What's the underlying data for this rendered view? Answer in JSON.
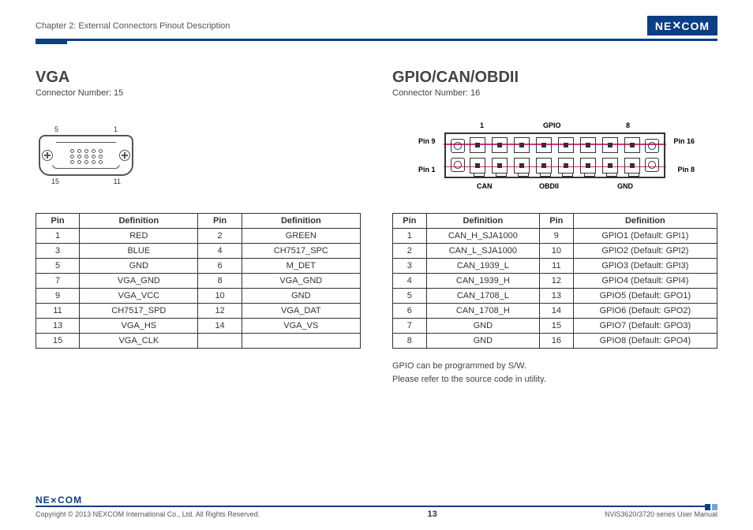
{
  "header": {
    "chapter": "Chapter 2: External Connectors Pinout Description",
    "logo_text": "NE COM",
    "rule_color": "#0b3e82"
  },
  "vga": {
    "title": "VGA",
    "subtitle": "Connector Number: 15",
    "diagram": {
      "corner_labels": {
        "tl": "5",
        "tr": "1",
        "bl": "15",
        "br": "11"
      },
      "rows": [
        5,
        5,
        5
      ],
      "shell_color": "#555555"
    },
    "table": {
      "columns": [
        "Pin",
        "Definition",
        "Pin",
        "Definition"
      ],
      "rows": [
        [
          "1",
          "RED",
          "2",
          "GREEN"
        ],
        [
          "3",
          "BLUE",
          "4",
          "CH7517_SPC"
        ],
        [
          "5",
          "GND",
          "6",
          "M_DET"
        ],
        [
          "7",
          "VGA_GND",
          "8",
          "VGA_GND"
        ],
        [
          "9",
          "VGA_VCC",
          "10",
          "GND"
        ],
        [
          "11",
          "CH7517_SPD",
          "12",
          "VGA_DAT"
        ],
        [
          "13",
          "VGA_HS",
          "14",
          "VGA_VS"
        ],
        [
          "15",
          "VGA_CLK",
          "",
          ""
        ]
      ]
    }
  },
  "gpio": {
    "title": "GPIO/CAN/OBDII",
    "subtitle": "Connector Number: 16",
    "diagram": {
      "top_labels": {
        "left_num": "1",
        "mid": "GPIO",
        "right_num": "8"
      },
      "side_labels": {
        "tl": "Pin 9",
        "tr": "Pin 16",
        "bl": "Pin 1",
        "br": "Pin 8"
      },
      "bottom_labels": [
        "CAN",
        "OBDII",
        "GND"
      ],
      "cols": 8,
      "line_color": "#d63384",
      "border_color": "#333333"
    },
    "table": {
      "columns": [
        "Pin",
        "Definition",
        "Pin",
        "Definition"
      ],
      "rows": [
        [
          "1",
          "CAN_H_SJA1000",
          "9",
          "GPIO1 (Default: GPI1)"
        ],
        [
          "2",
          "CAN_L_SJA1000",
          "10",
          "GPIO2 (Default: GPI2)"
        ],
        [
          "3",
          "CAN_1939_L",
          "11",
          "GPIO3 (Default: GPI3)"
        ],
        [
          "4",
          "CAN_1939_H",
          "12",
          "GPIO4 (Default: GPI4)"
        ],
        [
          "5",
          "CAN_1708_L",
          "13",
          "GPIO5 (Default: GPO1)"
        ],
        [
          "6",
          "CAN_1708_H",
          "14",
          "GPIO6 (Default: GPO2)"
        ],
        [
          "7",
          "GND",
          "15",
          "GPIO7 (Default: GPO3)"
        ],
        [
          "8",
          "GND",
          "16",
          "GPIO8 (Default: GPO4)"
        ]
      ]
    },
    "note_line1": "GPIO can be programmed by S/W.",
    "note_line2": "Please refer to the source code in utility."
  },
  "footer": {
    "logo": "NE COM",
    "copyright": "Copyright © 2013 NEXCOM International Co., Ltd. All Rights Reserved.",
    "page": "13",
    "manual": "NViS3620/3720 series User Manual"
  }
}
